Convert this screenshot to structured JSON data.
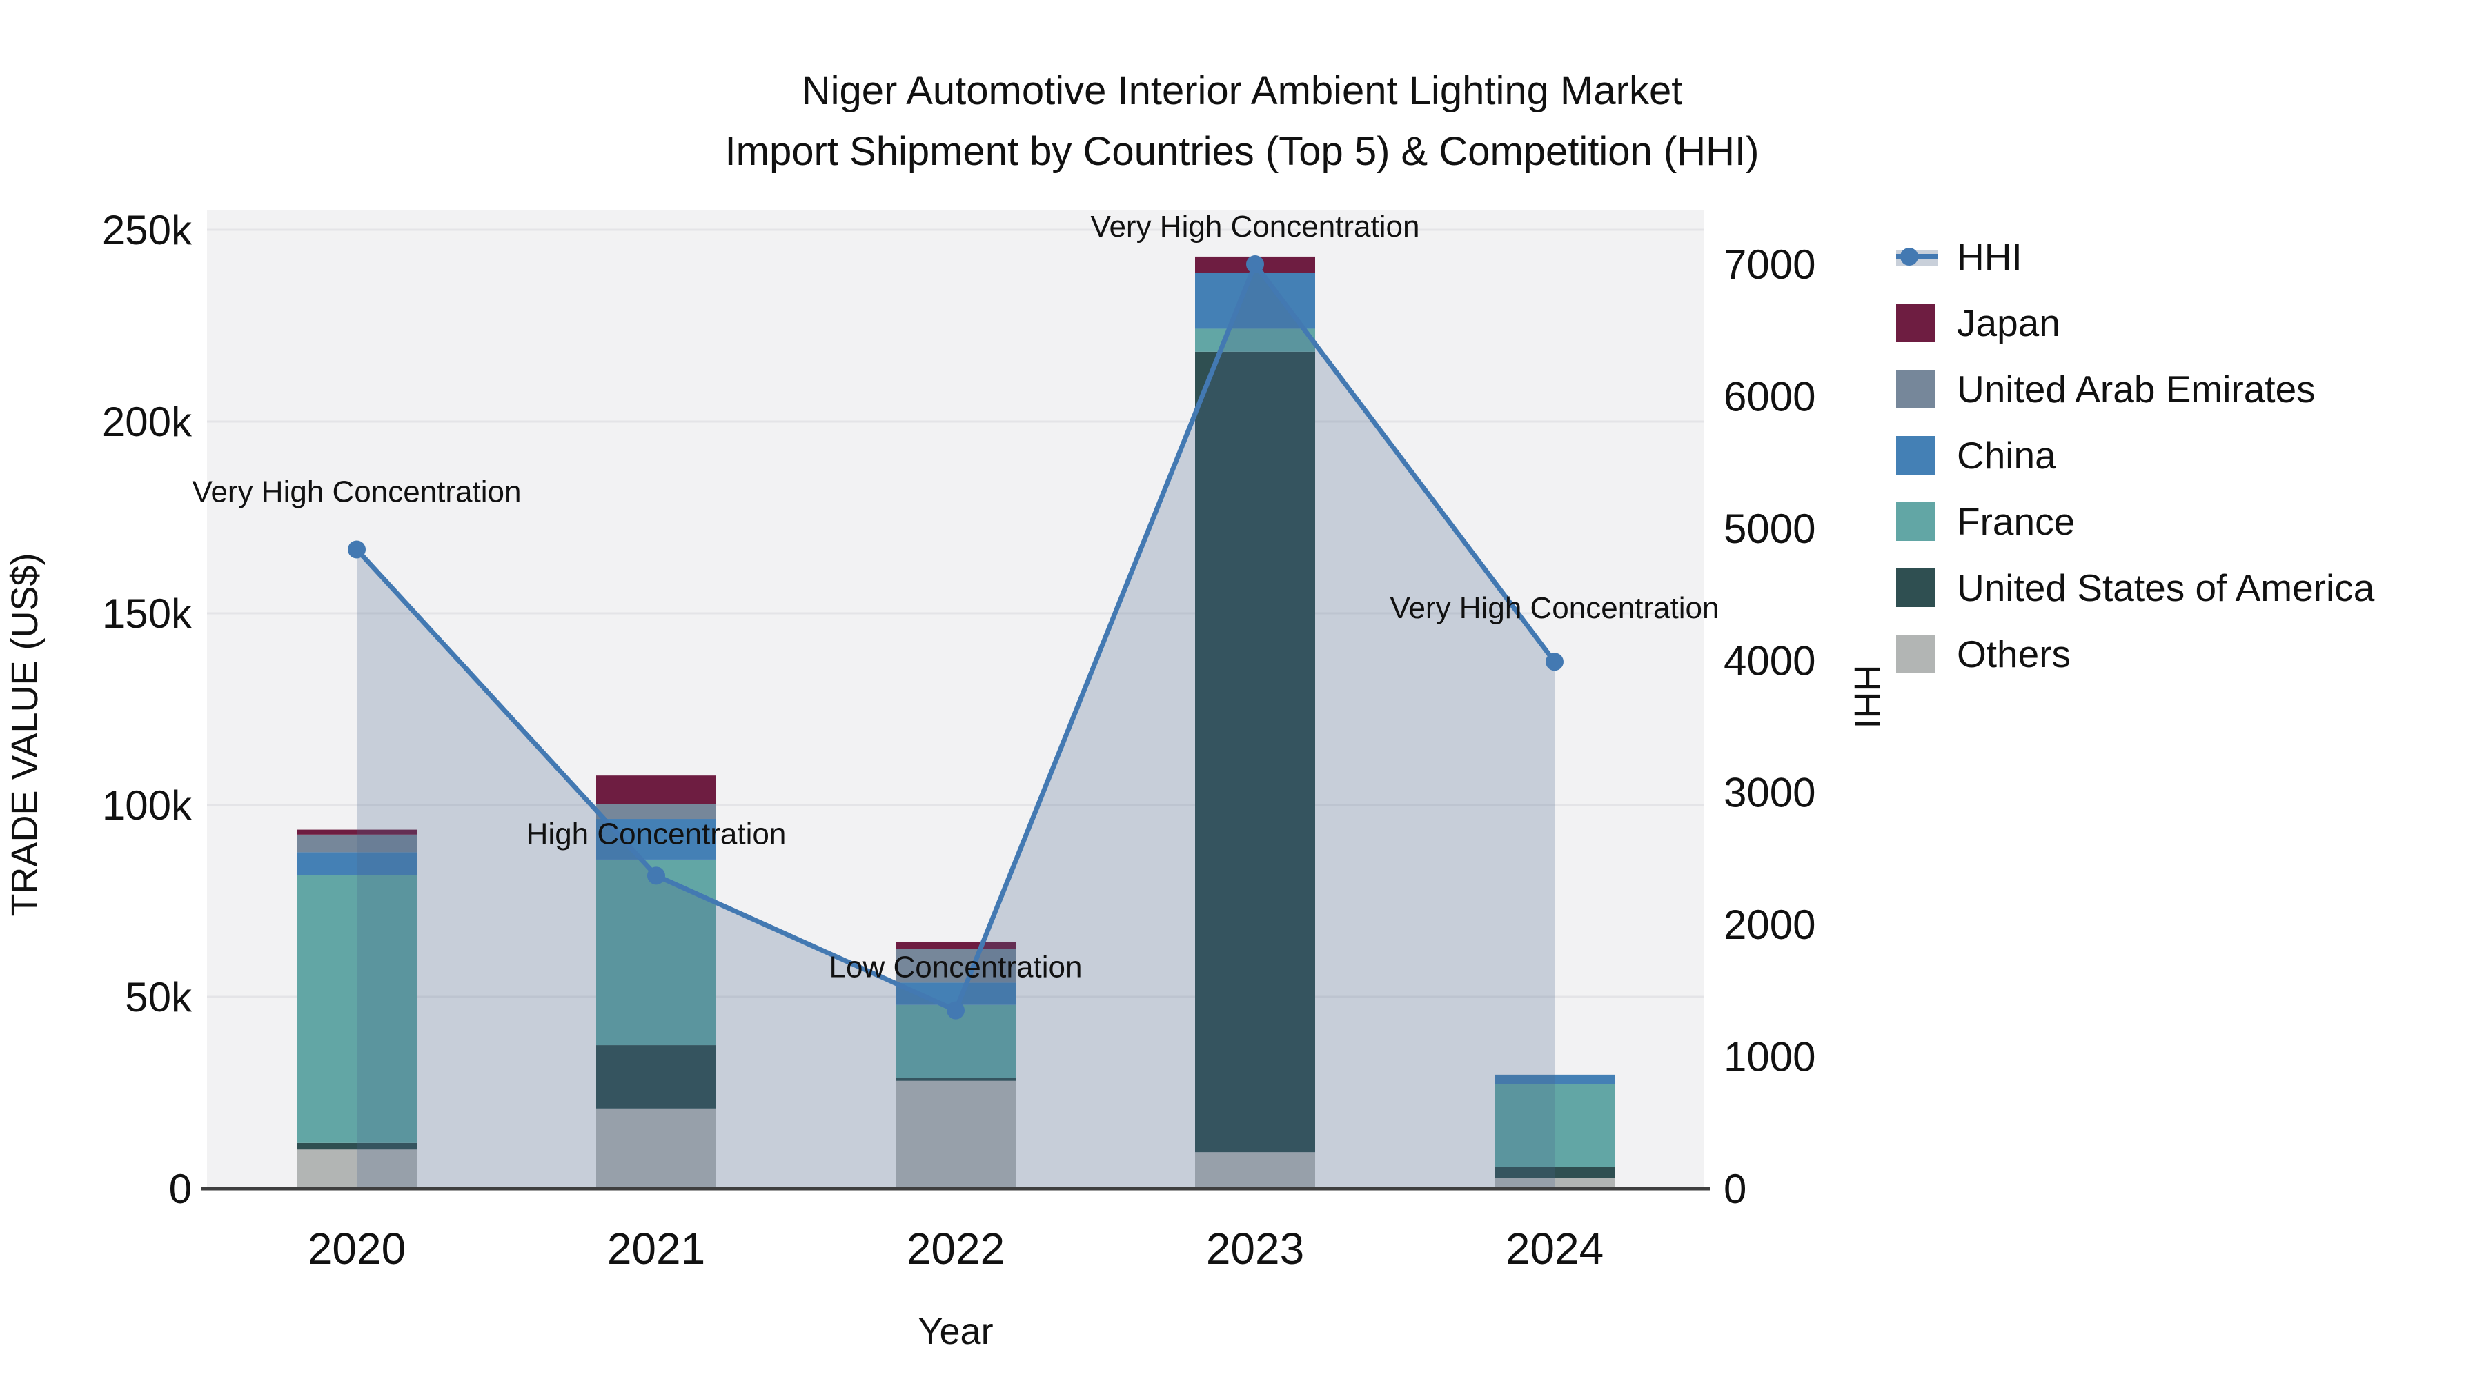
{
  "title": {
    "line1": "Niger Automotive Interior Ambient Lighting Market",
    "line2": "Import Shipment by Countries (Top 5) & Competition (HHI)"
  },
  "x_axis": {
    "title": "Year",
    "categories": [
      "2020",
      "2021",
      "2022",
      "2023",
      "2024"
    ]
  },
  "y_left": {
    "title": "TRADE VALUE (US$)",
    "tick_labels": [
      "0",
      "50k",
      "100k",
      "150k",
      "200k",
      "250k"
    ],
    "tick_values": [
      0,
      50000,
      100000,
      150000,
      200000,
      250000
    ],
    "max": 250000
  },
  "y_right": {
    "title": "HHI",
    "tick_labels": [
      "0",
      "1000",
      "2000",
      "3000",
      "4000",
      "5000",
      "6000",
      "7000"
    ],
    "tick_values": [
      0,
      1000,
      2000,
      3000,
      4000,
      5000,
      6000,
      7000
    ],
    "max": 7000
  },
  "legend": {
    "items": [
      {
        "label": "HHI",
        "type": "line"
      },
      {
        "label": "Japan",
        "type": "swatch",
        "color": "#6e1d41"
      },
      {
        "label": "United Arab Emirates",
        "type": "swatch",
        "color": "#76879a"
      },
      {
        "label": "China",
        "type": "swatch",
        "color": "#4480b5"
      },
      {
        "label": "France",
        "type": "swatch",
        "color": "#62a6a5"
      },
      {
        "label": "United States of America",
        "type": "swatch",
        "color": "#2f4f51"
      },
      {
        "label": "Others",
        "type": "swatch",
        "color": "#b2b5b4"
      }
    ]
  },
  "theme": {
    "plot_bg": "#f2f2f3",
    "grid": "#e4e4e7",
    "axis_line": "#3f3f3f",
    "text": "#111111",
    "line_color": "#4379b2",
    "area_fill": "rgba(70,100,140,0.25)",
    "hhi_band": "#c9d0da"
  },
  "chart_data": {
    "type": "bar+line",
    "title": "Niger Automotive Interior Ambient Lighting Market — Import Shipment by Countries (Top 5) & Competition (HHI)",
    "xlabel": "Year",
    "ylabel_left": "TRADE VALUE (US$)",
    "ylabel_right": "HHI",
    "ylim_left": [
      0,
      250000
    ],
    "ylim_right": [
      0,
      7000
    ],
    "grid": true,
    "legend_position": "right",
    "categories": [
      "2020",
      "2021",
      "2022",
      "2023",
      "2024"
    ],
    "stack_order_bottom_to_top": [
      "Others",
      "United States of America",
      "France",
      "China",
      "United Arab Emirates",
      "Japan"
    ],
    "series": [
      {
        "name": "Japan",
        "color": "#6e1d41",
        "values": [
          1300,
          7400,
          1800,
          4200,
          0
        ]
      },
      {
        "name": "United Arab Emirates",
        "color": "#76879a",
        "values": [
          4600,
          3900,
          8800,
          0,
          0
        ]
      },
      {
        "name": "China",
        "color": "#4480b5",
        "values": [
          6000,
          10600,
          5800,
          14600,
          2400
        ]
      },
      {
        "name": "France",
        "color": "#62a6a5",
        "values": [
          69800,
          48400,
          19100,
          6000,
          21700
        ]
      },
      {
        "name": "United States of America",
        "color": "#2f4f51",
        "values": [
          1700,
          16500,
          700,
          208700,
          2900
        ]
      },
      {
        "name": "Others",
        "color": "#b2b5b4",
        "values": [
          10200,
          20900,
          28100,
          9500,
          2700
        ]
      }
    ],
    "hhi": {
      "name": "HHI",
      "color": "#4379b2",
      "values": [
        4840,
        2370,
        1350,
        7000,
        3990
      ]
    },
    "annotations": [
      {
        "x": "2020",
        "text": "Very High Concentration",
        "dy": -69
      },
      {
        "x": "2021",
        "text": "High Concentration",
        "dy": -46
      },
      {
        "x": "2022",
        "text": "Low Concentration",
        "dy": -48
      },
      {
        "x": "2023",
        "text": "Very High Concentration",
        "dy": -40
      },
      {
        "x": "2024",
        "text": "Very High Concentration",
        "dy": -63
      }
    ]
  }
}
